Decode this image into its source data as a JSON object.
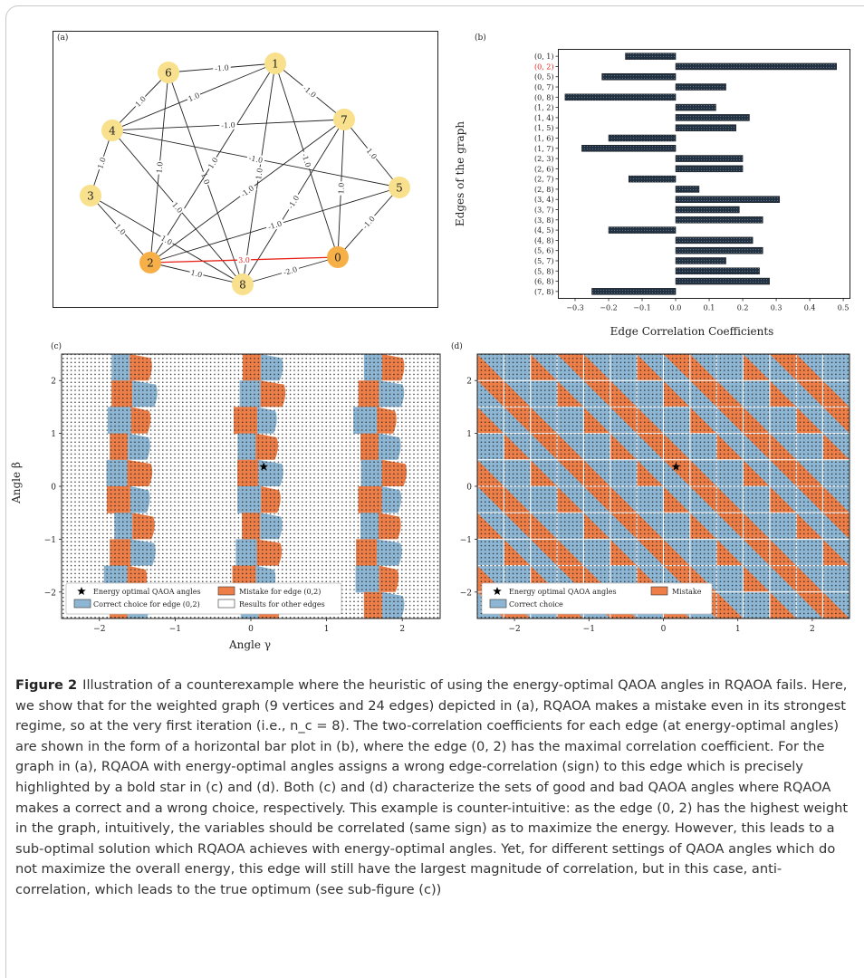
{
  "panels": {
    "a": {
      "label": "(a)",
      "nodes": [
        {
          "id": "0",
          "color": "#f7b048"
        },
        {
          "id": "1",
          "color": "#f9e08d"
        },
        {
          "id": "2",
          "color": "#f7b048"
        },
        {
          "id": "3",
          "color": "#f9e08d"
        },
        {
          "id": "4",
          "color": "#f9e08d"
        },
        {
          "id": "5",
          "color": "#f9e08d"
        },
        {
          "id": "6",
          "color": "#f9e08d"
        },
        {
          "id": "7",
          "color": "#f9e08d"
        },
        {
          "id": "8",
          "color": "#f9e08d"
        }
      ],
      "edges": [
        {
          "u": "6",
          "v": "1",
          "w": "-1.0"
        },
        {
          "u": "6",
          "v": "4",
          "w": "1.0"
        },
        {
          "u": "6",
          "v": "2",
          "w": "1.0"
        },
        {
          "u": "6",
          "v": "8",
          "w": "1.0"
        },
        {
          "u": "1",
          "v": "4",
          "w": "1.0"
        },
        {
          "u": "1",
          "v": "7",
          "w": "-1.0"
        },
        {
          "u": "1",
          "v": "2",
          "w": "1.0"
        },
        {
          "u": "1",
          "v": "0",
          "w": "-1.0"
        },
        {
          "u": "1",
          "v": "8",
          "w": "1.0"
        },
        {
          "u": "4",
          "v": "3",
          "w": "1.0"
        },
        {
          "u": "4",
          "v": "7",
          "w": "-1.0"
        },
        {
          "u": "4",
          "v": "5",
          "w": "-1.0"
        },
        {
          "u": "4",
          "v": "8",
          "w": "1.0"
        },
        {
          "u": "3",
          "v": "2",
          "w": "1.0"
        },
        {
          "u": "3",
          "v": "8",
          "w": "1.0"
        },
        {
          "u": "7",
          "v": "5",
          "w": "1.0"
        },
        {
          "u": "7",
          "v": "2",
          "w": "-1.0"
        },
        {
          "u": "7",
          "v": "0",
          "w": "1.0"
        },
        {
          "u": "7",
          "v": "8",
          "w": "-1.0"
        },
        {
          "u": "5",
          "v": "2",
          "w": "-1.0"
        },
        {
          "u": "5",
          "v": "0",
          "w": "-1.0"
        },
        {
          "u": "2",
          "v": "0",
          "w": "3.0",
          "highlight": true
        },
        {
          "u": "2",
          "v": "8",
          "w": "1.0"
        },
        {
          "u": "8",
          "v": "0",
          "w": "-2.0"
        }
      ],
      "edge_color": "#222222",
      "highlight_color": "#e8231a"
    },
    "b": {
      "label": "(b)",
      "chart_data": {
        "type": "bar",
        "orientation": "horizontal",
        "categories": [
          "(0, 1)",
          "(0, 2)",
          "(0, 5)",
          "(0, 7)",
          "(0, 8)",
          "(1, 2)",
          "(1, 4)",
          "(1, 5)",
          "(1, 6)",
          "(1, 7)",
          "(2, 3)",
          "(2, 6)",
          "(2, 7)",
          "(2, 8)",
          "(3, 4)",
          "(3, 7)",
          "(3, 8)",
          "(4, 5)",
          "(4, 8)",
          "(5, 6)",
          "(5, 7)",
          "(5, 8)",
          "(6, 8)",
          "(7, 8)"
        ],
        "values": [
          -0.15,
          0.48,
          -0.22,
          0.15,
          -0.33,
          0.12,
          0.22,
          0.18,
          -0.2,
          -0.28,
          0.2,
          0.2,
          -0.14,
          0.07,
          0.31,
          0.19,
          0.26,
          -0.2,
          0.23,
          0.26,
          0.15,
          0.25,
          0.28,
          -0.25
        ],
        "highlight_category": "(0, 2)",
        "xlabel": "Edge Correlation Coefficients",
        "ylabel": "Edges of the graph",
        "xlim": [
          -0.35,
          0.52
        ],
        "xticks": [
          "−0.3",
          "−0.2",
          "−0.1",
          "0.0",
          "0.1",
          "0.2",
          "0.3",
          "0.4",
          "0.5"
        ],
        "xtick_values": [
          -0.3,
          -0.2,
          -0.1,
          0.0,
          0.1,
          0.2,
          0.3,
          0.4,
          0.5
        ],
        "bar_color": "#233243",
        "highlight_color": "#e8231a"
      }
    },
    "c": {
      "label": "(c)",
      "xlabel": "Angle γ",
      "ylabel": "Angle β",
      "xticks": [
        "−2",
        "−1",
        "0",
        "1",
        "2"
      ],
      "yticks": [
        "2",
        "1",
        "0",
        "−1",
        "−2"
      ],
      "xtick_values": [
        -2,
        -1,
        0,
        1,
        2
      ],
      "ytick_values": [
        2,
        1,
        0,
        -1,
        -2
      ],
      "xlim": [
        -2.5,
        2.5
      ],
      "ylim": [
        -2.5,
        2.5
      ],
      "star": {
        "x": 0.17,
        "y": 0.37
      },
      "legend": {
        "star": "Energy optimal QAOA angles",
        "mistake": "Mistake for edge (0,2)",
        "correct": "Correct choice for edge (0,2)",
        "other": "Results for other edges"
      }
    },
    "d": {
      "label": "(d)",
      "xticks": [
        "−2",
        "−1",
        "0",
        "1",
        "2"
      ],
      "yticks": [
        "2",
        "1",
        "0",
        "−1",
        "−2"
      ],
      "xtick_values": [
        -2,
        -1,
        0,
        1,
        2
      ],
      "ytick_values": [
        2,
        1,
        0,
        -1,
        -2
      ],
      "xlim": [
        -2.5,
        2.5
      ],
      "ylim": [
        -2.5,
        2.5
      ],
      "star": {
        "x": 0.17,
        "y": 0.37
      },
      "legend": {
        "star": "Energy optimal QAOA angles",
        "mistake": "Mistake",
        "correct": "Correct choice"
      }
    }
  },
  "colors": {
    "blue": "#8cb6d3",
    "orange": "#ee7e47",
    "grid_dots": "#222222"
  },
  "caption": {
    "label": "Figure 2",
    "text": "Illustration of a counterexample where the heuristic of using the energy-optimal QAOA angles in RQAOA fails. Here, we show that for the weighted graph (9 vertices and 24 edges) depicted in (a), RQAOA makes a mistake even in its strongest regime, so at the very first iteration (i.e., n_c = 8). The two-correlation coefficients for each edge (at energy-optimal angles) are shown in the form of a horizontal bar plot in (b), where the edge (0, 2) has the maximal correlation coefficient. For the graph in (a), RQAOA with energy-optimal angles assigns a wrong edge-correlation (sign) to this edge which is precisely highlighted by a bold star in (c) and (d). Both (c) and (d) characterize the sets of good and bad QAOA angles where RQAOA makes a correct and a wrong choice, respectively. This example is counter-intuitive: as the edge (0, 2) has the highest weight in the graph, intuitively, the variables should be correlated (same sign) as to maximize the energy. However, this leads to a sub-optimal solution which RQAOA achieves with energy-optimal angles. Yet, for different settings of QAOA angles which do not maximize the overall energy, this edge will still have the largest magnitude of correlation, but in this case, anti-correlation, which leads to the true optimum (see sub-figure (c))"
  }
}
